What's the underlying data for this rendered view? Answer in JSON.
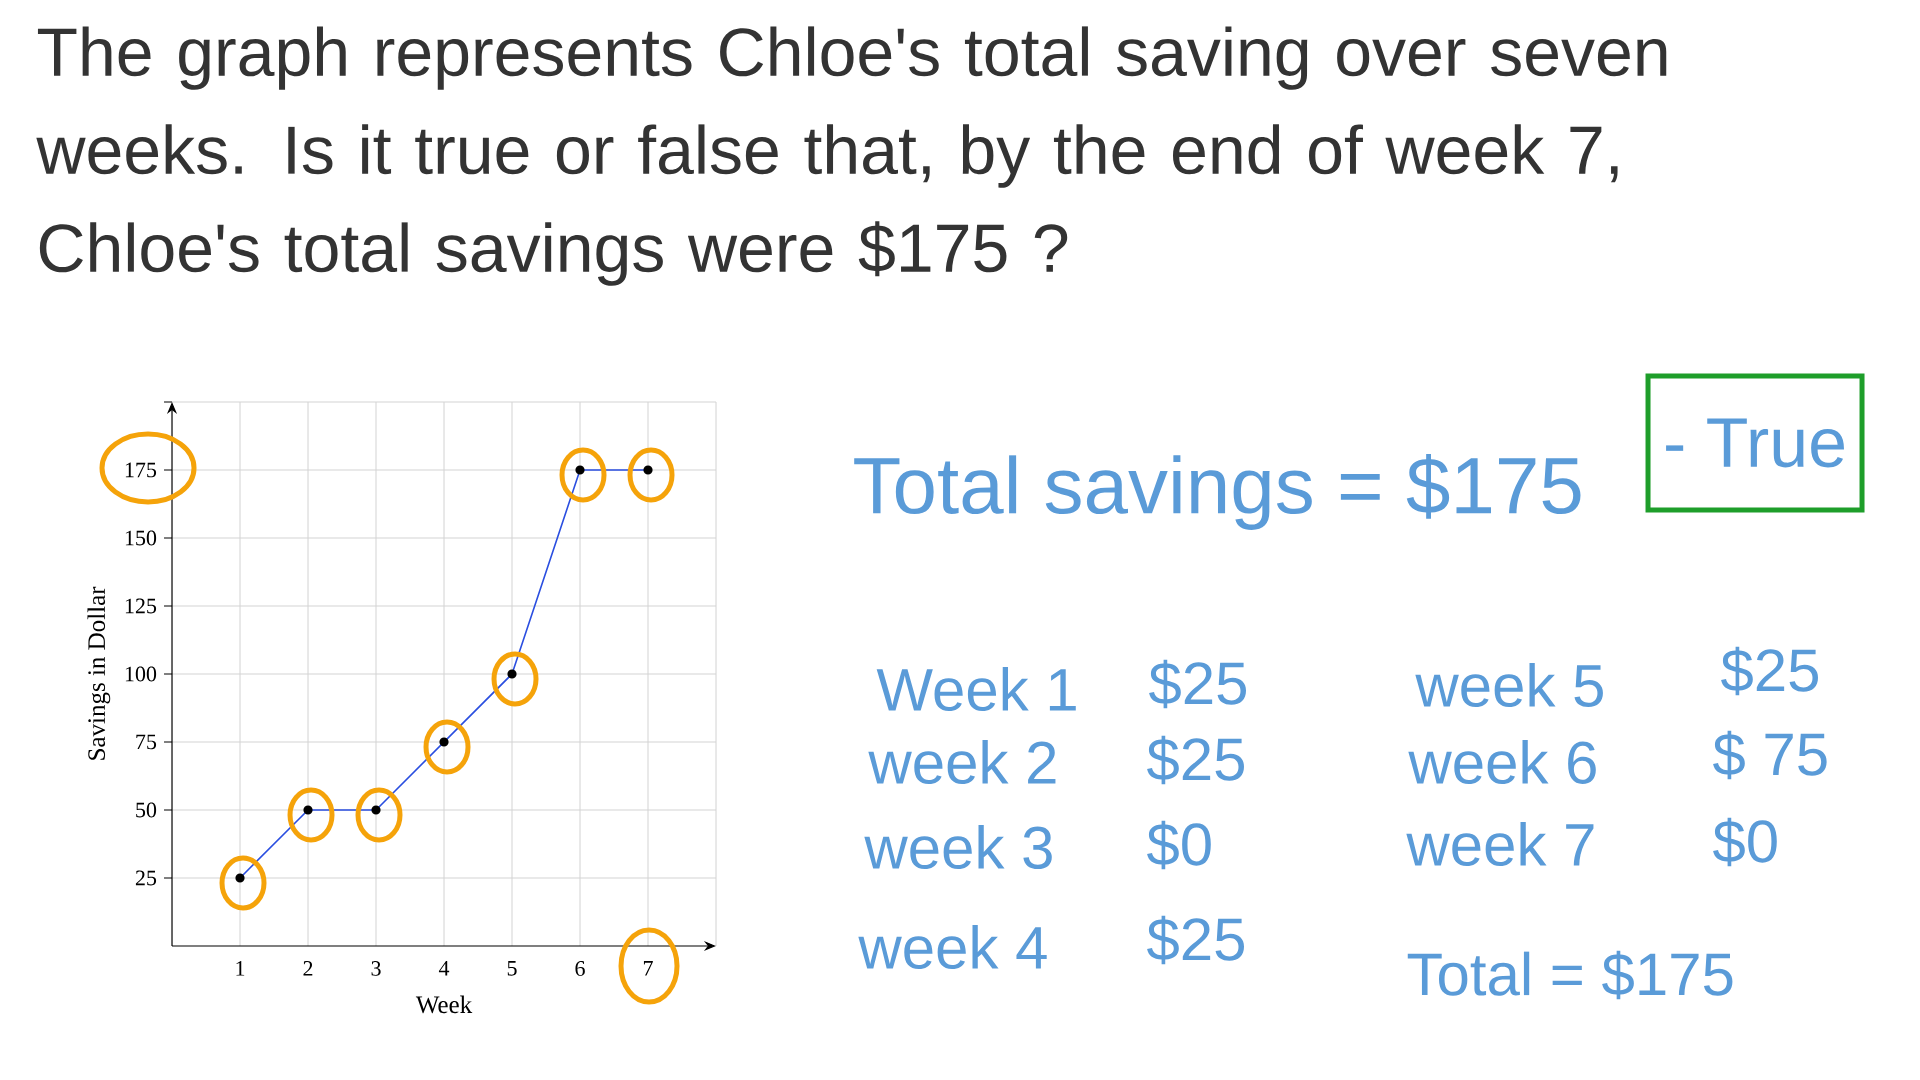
{
  "chart_data": {
    "type": "line",
    "title": "The graph represents Chloe's total saving over seven weeks. Is it true or false that, by the end of week 7, Chloe's total savings were $175 ?",
    "xlabel": "Week",
    "ylabel": "Savings in Dollar",
    "x": [
      1,
      2,
      3,
      4,
      5,
      6,
      7
    ],
    "series": [
      {
        "color": "#2a4ee0",
        "values": [
          25,
          50,
          50,
          75,
          100,
          175,
          175
        ]
      }
    ],
    "xlim": [
      0,
      8
    ],
    "ylim": [
      0,
      200
    ],
    "xticks": [
      1,
      2,
      3,
      4,
      5,
      6,
      7,
      {
        "value": 8,
        "label": null
      }
    ],
    "yticks": [
      25,
      50,
      75,
      100,
      125,
      150,
      175,
      {
        "value": 200,
        "label": null
      }
    ],
    "grid": true,
    "marker": "circle",
    "annotations": [
      "Total savings = $175",
      "- True",
      "Week 1",
      "$25",
      "week 5",
      "$25",
      "week 2",
      "$25",
      "week 6",
      "$ 75",
      "week 3",
      "$0",
      "week 7",
      "$0",
      "week 4",
      "$25",
      "Total = $175"
    ]
  }
}
